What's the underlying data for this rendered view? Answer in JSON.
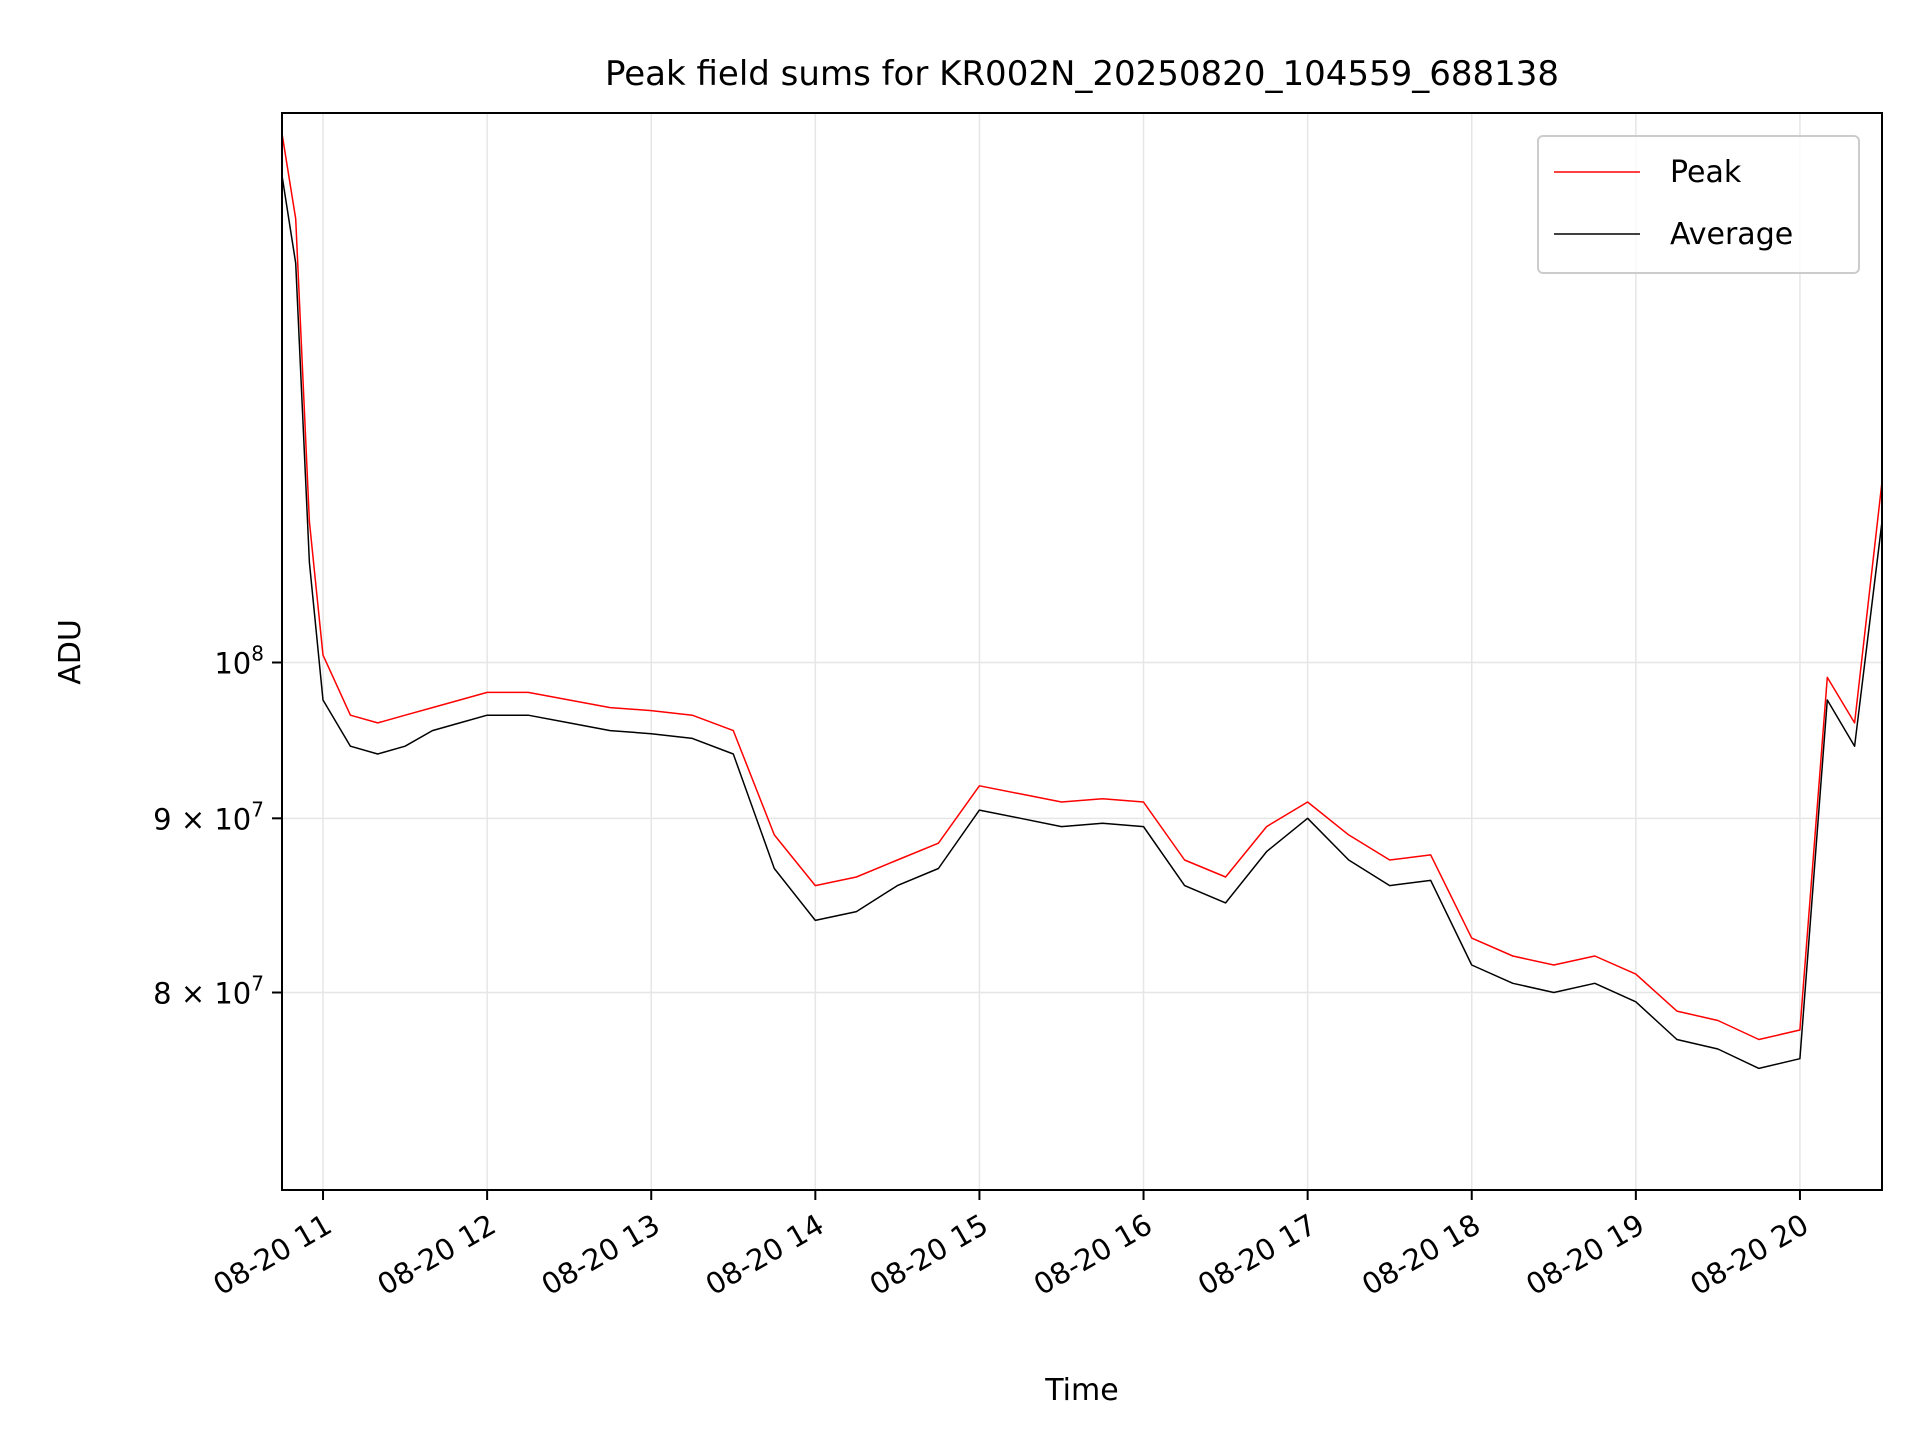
{
  "chart_data": {
    "type": "line",
    "title": "Peak field sums for KR002N_20250820_104559_688138",
    "xlabel": "Time",
    "ylabel": "ADU",
    "yscale": "log",
    "grid": true,
    "legend_position": "top-right",
    "xlim": [
      "2025-08-20 10:45",
      "2025-08-20 20:30"
    ],
    "ylim": [
      70000000,
      145000000
    ],
    "x_ticks": [
      "08-20 11",
      "08-20 12",
      "08-20 13",
      "08-20 14",
      "08-20 15",
      "08-20 16",
      "08-20 17",
      "08-20 18",
      "08-20 19",
      "08-20 20"
    ],
    "y_ticks": [
      {
        "value": 80000000,
        "label": "8 × 10",
        "exp": "7"
      },
      {
        "value": 90000000,
        "label": "9 × 10",
        "exp": "7"
      },
      {
        "value": 100000000,
        "label": "10",
        "exp": "8"
      }
    ],
    "x": [
      "2025-08-20 10:45",
      "2025-08-20 10:50",
      "2025-08-20 10:55",
      "2025-08-20 11:00",
      "2025-08-20 11:10",
      "2025-08-20 11:20",
      "2025-08-20 11:30",
      "2025-08-20 11:40",
      "2025-08-20 11:50",
      "2025-08-20 12:00",
      "2025-08-20 12:15",
      "2025-08-20 12:30",
      "2025-08-20 12:45",
      "2025-08-20 13:00",
      "2025-08-20 13:15",
      "2025-08-20 13:30",
      "2025-08-20 13:45",
      "2025-08-20 14:00",
      "2025-08-20 14:15",
      "2025-08-20 14:30",
      "2025-08-20 14:45",
      "2025-08-20 15:00",
      "2025-08-20 15:15",
      "2025-08-20 15:30",
      "2025-08-20 15:45",
      "2025-08-20 16:00",
      "2025-08-20 16:15",
      "2025-08-20 16:30",
      "2025-08-20 16:45",
      "2025-08-20 17:00",
      "2025-08-20 17:15",
      "2025-08-20 17:30",
      "2025-08-20 17:45",
      "2025-08-20 18:00",
      "2025-08-20 18:15",
      "2025-08-20 18:30",
      "2025-08-20 18:45",
      "2025-08-20 19:00",
      "2025-08-20 19:15",
      "2025-08-20 19:30",
      "2025-08-20 19:45",
      "2025-08-20 20:00",
      "2025-08-20 20:10",
      "2025-08-20 20:20",
      "2025-08-20 20:30"
    ],
    "series": [
      {
        "name": "Peak",
        "color": "#ff0000",
        "values": [
          143000000,
          135000000,
          110000000,
          100500000,
          96500000,
          96000000,
          96500000,
          97000000,
          97500000,
          98000000,
          98000000,
          97500000,
          97000000,
          96800000,
          96500000,
          95500000,
          89000000,
          86000000,
          86500000,
          87500000,
          88500000,
          92000000,
          91500000,
          91000000,
          91200000,
          91000000,
          87500000,
          86500000,
          89500000,
          91000000,
          89000000,
          87500000,
          87800000,
          83000000,
          82000000,
          81500000,
          82000000,
          81000000,
          79000000,
          78500000,
          77500000,
          78000000,
          99000000,
          96000000,
          113000000
        ]
      },
      {
        "name": "Average",
        "color": "#000000",
        "values": [
          139000000,
          131000000,
          107000000,
          97500000,
          94500000,
          94000000,
          94500000,
          95500000,
          96000000,
          96500000,
          96500000,
          96000000,
          95500000,
          95300000,
          95000000,
          94000000,
          87000000,
          84000000,
          84500000,
          86000000,
          87000000,
          90500000,
          90000000,
          89500000,
          89700000,
          89500000,
          86000000,
          85000000,
          88000000,
          90000000,
          87500000,
          86000000,
          86300000,
          81500000,
          80500000,
          80000000,
          80500000,
          79500000,
          77500000,
          77000000,
          76000000,
          76500000,
          97500000,
          94500000,
          110000000
        ]
      }
    ]
  }
}
